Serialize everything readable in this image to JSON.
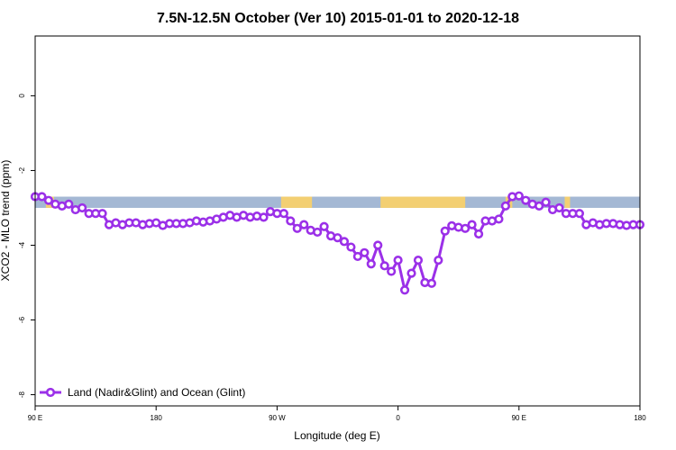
{
  "chart_data": {
    "type": "line",
    "title": "7.5N-12.5N October (Ver 10)   2015-01-01 to 2020-12-18",
    "xlabel": "Longitude (deg E)",
    "ylabel": "XCO2 - MLO trend (ppm)",
    "x_ticks": [
      {
        "value": 90,
        "label": "90 E"
      },
      {
        "value": 180,
        "label": "180"
      },
      {
        "value": 270,
        "label": "90 W"
      },
      {
        "value": 360,
        "label": "0"
      },
      {
        "value": 450,
        "label": "90 E"
      },
      {
        "value": 540,
        "label": "180"
      }
    ],
    "y_ticks": [
      0,
      -2,
      -4,
      -6,
      -8
    ],
    "xlim": [
      90,
      540
    ],
    "ylim": [
      -8.3,
      1.6
    ],
    "grid": false,
    "legend_position": "bottom-left",
    "band": {
      "y_min": -3.0,
      "y_max": -2.7,
      "ocean_color": "#a4b8d4",
      "land_color": "#f3cf72"
    },
    "land_segments": [
      [
        98,
        104
      ],
      [
        273,
        296
      ],
      [
        347,
        410
      ],
      [
        440,
        445
      ],
      [
        484,
        488
      ]
    ],
    "series": [
      {
        "name": "Land (Nadir&Glint) and Ocean (Glint)",
        "color": "#9b30e8",
        "x": [
          90,
          95,
          100,
          105,
          110,
          115,
          120,
          125,
          130,
          135,
          140,
          145,
          150,
          155,
          160,
          165,
          170,
          175,
          180,
          185,
          190,
          195,
          200,
          205,
          210,
          215,
          220,
          225,
          230,
          235,
          240,
          245,
          250,
          255,
          260,
          265,
          270,
          275,
          280,
          285,
          290,
          295,
          300,
          305,
          310,
          315,
          320,
          325,
          330,
          335,
          340,
          345,
          350,
          355,
          360,
          365,
          370,
          375,
          380,
          385,
          390,
          395,
          400,
          405,
          410,
          415,
          420,
          425,
          430,
          435,
          440,
          445,
          450,
          455,
          460,
          465,
          470,
          475,
          480,
          485,
          490,
          495,
          500,
          505,
          510,
          515,
          520,
          525,
          530,
          535,
          540
        ],
        "y": [
          -2.7,
          -2.7,
          -2.8,
          -2.9,
          -2.95,
          -2.9,
          -3.05,
          -3.0,
          -3.15,
          -3.15,
          -3.15,
          -3.45,
          -3.4,
          -3.45,
          -3.4,
          -3.4,
          -3.45,
          -3.42,
          -3.4,
          -3.47,
          -3.42,
          -3.42,
          -3.42,
          -3.4,
          -3.35,
          -3.38,
          -3.35,
          -3.3,
          -3.25,
          -3.2,
          -3.25,
          -3.2,
          -3.25,
          -3.22,
          -3.25,
          -3.1,
          -3.15,
          -3.15,
          -3.35,
          -3.55,
          -3.45,
          -3.6,
          -3.65,
          -3.5,
          -3.75,
          -3.8,
          -3.9,
          -4.05,
          -4.3,
          -4.2,
          -4.5,
          -4.0,
          -4.55,
          -4.7,
          -4.4,
          -5.2,
          -4.75,
          -4.4,
          -5.0,
          -5.02,
          -4.4,
          -3.62,
          -3.48,
          -3.52,
          -3.55,
          -3.45,
          -3.7,
          -3.35,
          -3.35,
          -3.3,
          -2.95,
          -2.7,
          -2.68,
          -2.8,
          -2.9,
          -2.95,
          -2.85,
          -3.05,
          -3.0,
          -3.15,
          -3.15,
          -3.15,
          -3.45,
          -3.4,
          -3.45,
          -3.42,
          -3.42,
          -3.45,
          -3.47,
          -3.45,
          -3.45
        ]
      }
    ]
  }
}
